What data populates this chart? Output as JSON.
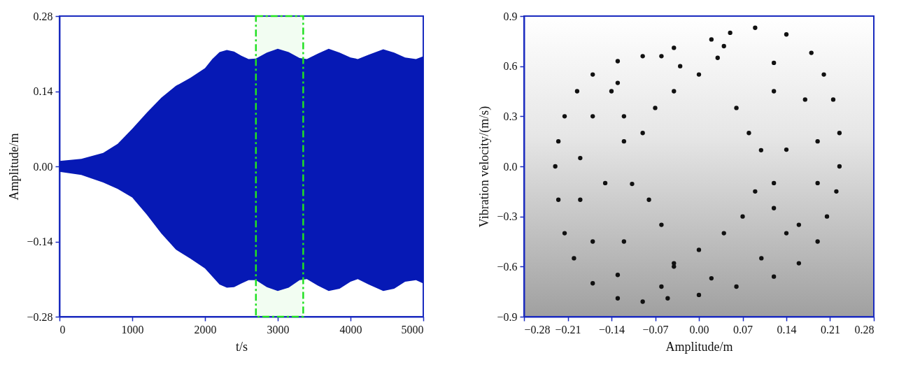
{
  "chart_data": [
    {
      "type": "area",
      "xlabel": "t/s",
      "ylabel": "Amplitude/m",
      "x": [
        0,
        300,
        600,
        800,
        1000,
        1200,
        1400,
        1600,
        1800,
        2000,
        2100,
        2200,
        2300,
        2400,
        2500,
        2600,
        2700,
        2850,
        3000,
        3150,
        3300,
        3400,
        3550,
        3700,
        3850,
        4000,
        4100,
        4250,
        4450,
        4600,
        4750,
        4900,
        5000
      ],
      "series": [
        {
          "color": "#0619b5",
          "values": [
            0.01,
            0.014,
            0.025,
            0.042,
            0.07,
            0.1,
            0.128,
            0.15,
            0.165,
            0.183,
            0.2,
            0.213,
            0.217,
            0.214,
            0.206,
            0.2,
            0.201,
            0.212,
            0.219,
            0.213,
            0.202,
            0.2,
            0.21,
            0.219,
            0.212,
            0.203,
            0.2,
            0.208,
            0.218,
            0.212,
            0.203,
            0.2,
            0.205
          ]
        },
        {
          "color": "#0619b5",
          "values": [
            -0.01,
            -0.016,
            -0.03,
            -0.042,
            -0.058,
            -0.09,
            -0.125,
            -0.155,
            -0.172,
            -0.19,
            -0.205,
            -0.22,
            -0.226,
            -0.225,
            -0.218,
            -0.212,
            -0.212,
            -0.225,
            -0.232,
            -0.226,
            -0.212,
            -0.21,
            -0.222,
            -0.232,
            -0.228,
            -0.215,
            -0.21,
            -0.22,
            -0.232,
            -0.228,
            -0.215,
            -0.212,
            -0.218
          ]
        }
      ],
      "xlim": [
        0,
        5000
      ],
      "xticks": [
        0,
        1000,
        2000,
        3000,
        4000,
        5000
      ],
      "ylim": [
        -0.28,
        0.28
      ],
      "yticks": [
        -0.28,
        -0.14,
        {
          "value": 0,
          "label": "0.00"
        },
        0.14,
        0.28
      ],
      "bands": [
        {
          "axis": "x",
          "from": 2700,
          "to": 3350,
          "color": "#22e022"
        }
      ]
    },
    {
      "type": "scatter",
      "xlabel": "Amplitude/m",
      "ylabel": "Vibration velocity/(m/s)",
      "marker": "circle",
      "series": [
        {
          "color": "#111111",
          "x": [
            0.09,
            0.14,
            0.18,
            0.2,
            0.215,
            0.225,
            0.225,
            0.22,
            0.205,
            0.19,
            0.16,
            0.12,
            0.06,
            0.0,
            -0.05,
            -0.09,
            -0.13,
            -0.17,
            -0.2,
            -0.215,
            -0.225,
            -0.23,
            -0.225,
            -0.215,
            -0.195,
            -0.17,
            -0.13,
            -0.09,
            -0.04,
            0.02,
            0.05,
            0.04,
            0.12,
            0.17,
            0.19,
            0.19,
            0.16,
            0.1,
            0.02,
            -0.06,
            -0.13,
            -0.17,
            -0.19,
            -0.19,
            -0.17,
            -0.13,
            -0.06,
            -0.107,
            -0.09,
            -0.07,
            -0.04,
            0.0,
            0.03,
            -0.12,
            -0.14,
            -0.12,
            0.0995,
            0.09,
            0.07,
            0.04,
            0.0,
            -0.04,
            0.12,
            0.14,
            0.12,
            -0.03,
            0.06,
            0.08,
            -0.04,
            -0.06,
            -0.08,
            0.12,
            -0.12,
            0.14,
            -0.15
          ],
          "values": [
            0.83,
            0.79,
            0.68,
            0.55,
            0.4,
            0.2,
            0.0,
            -0.15,
            -0.3,
            -0.45,
            -0.58,
            -0.66,
            -0.72,
            -0.77,
            -0.79,
            -0.81,
            -0.79,
            -0.7,
            -0.55,
            -0.4,
            -0.2,
            0.0,
            0.15,
            0.3,
            0.45,
            0.55,
            0.63,
            0.66,
            0.71,
            0.76,
            0.8,
            0.72,
            0.62,
            0.4,
            0.15,
            -0.1,
            -0.35,
            -0.55,
            -0.67,
            -0.72,
            -0.65,
            -0.45,
            -0.2,
            0.05,
            0.3,
            0.5,
            0.66,
            -0.105,
            0.2,
            0.35,
            0.45,
            0.55,
            0.65,
            0.3,
            0.45,
            0.15,
            0.097,
            -0.15,
            -0.3,
            -0.4,
            -0.5,
            -0.58,
            -0.25,
            -0.4,
            -0.1,
            0.6,
            0.35,
            0.2,
            -0.6,
            -0.35,
            -0.2,
            0.45,
            -0.45,
            0.1,
            -0.1
          ]
        }
      ],
      "xlim": [
        -0.28,
        0.28
      ],
      "xticks": [
        -0.28,
        -0.21,
        -0.14,
        -0.07,
        {
          "value": 0,
          "label": "0.00"
        },
        0.07,
        0.14,
        0.21,
        0.28
      ],
      "ylim": [
        -0.9,
        0.9
      ],
      "yticks": [
        -0.9,
        -0.6,
        -0.3,
        {
          "value": 0,
          "label": "0.0"
        },
        0.3,
        0.6,
        0.9
      ]
    }
  ]
}
